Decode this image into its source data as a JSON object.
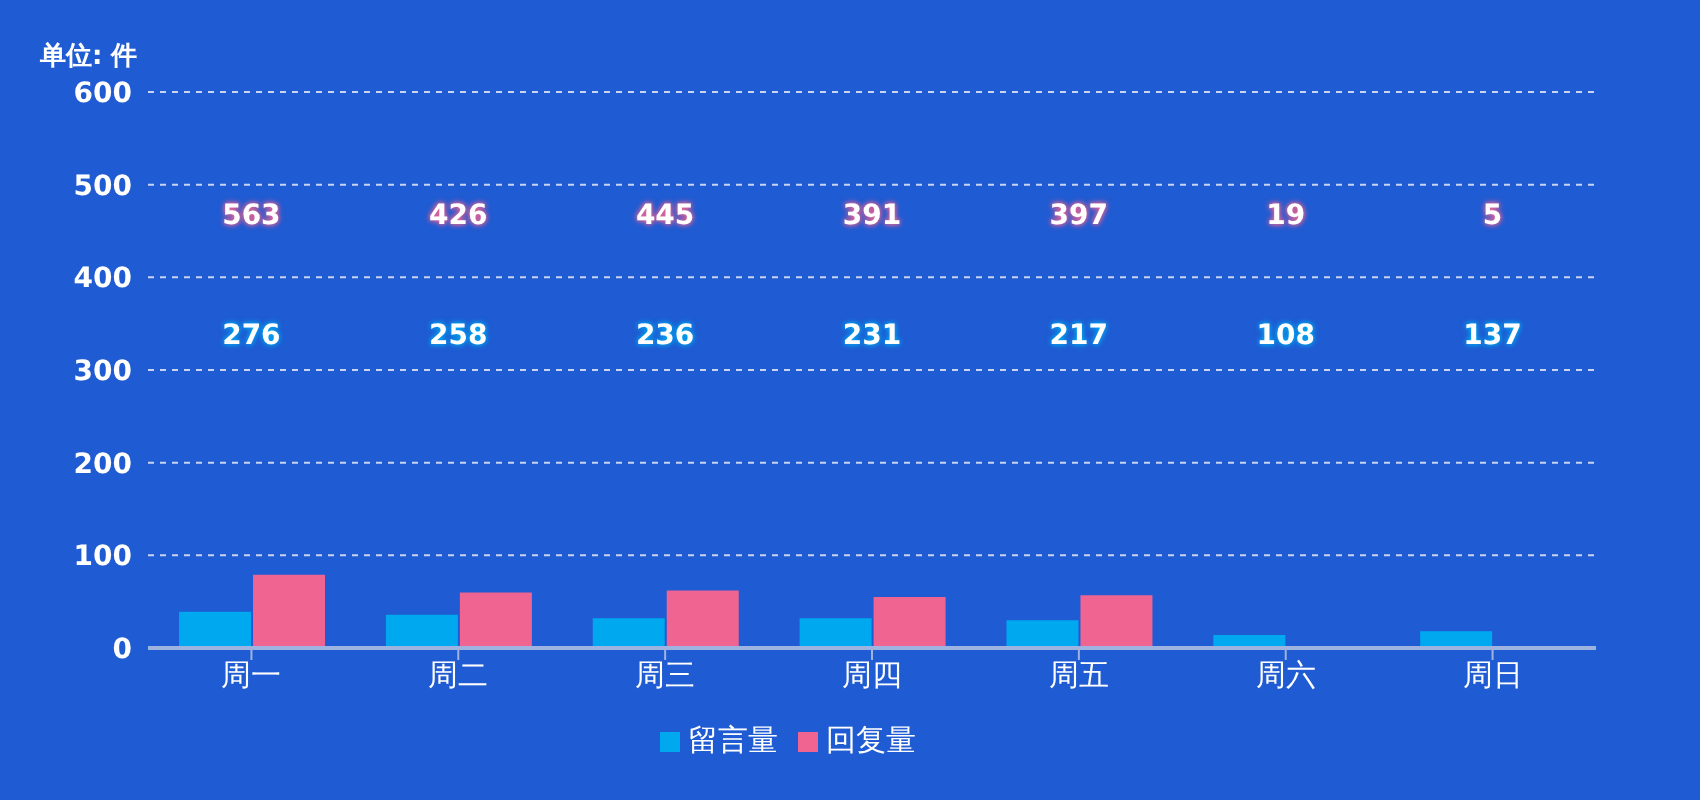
{
  "chart_data": {
    "type": "bar",
    "ylabel": "单位: 件",
    "categories": [
      "周一",
      "周二",
      "周三",
      "周四",
      "周五",
      "周六",
      "周日"
    ],
    "series": [
      {
        "name": "留言量",
        "color": "#00a8f0",
        "values": [
          39,
          36,
          32,
          32,
          30,
          14,
          18
        ]
      },
      {
        "name": "回复量",
        "color": "#f06492",
        "values": [
          79,
          60,
          62,
          55,
          57,
          2,
          1
        ]
      }
    ],
    "ylim": [
      0,
      600
    ],
    "yticks": [
      0,
      100,
      200,
      300,
      400,
      500,
      600
    ],
    "grid": "y",
    "legend": "bottom",
    "annotations": [
      "276",
      "258",
      "236",
      "231",
      "217",
      "108",
      "137",
      "563",
      "426",
      "445",
      "391",
      "397",
      "19",
      "5"
    ]
  }
}
